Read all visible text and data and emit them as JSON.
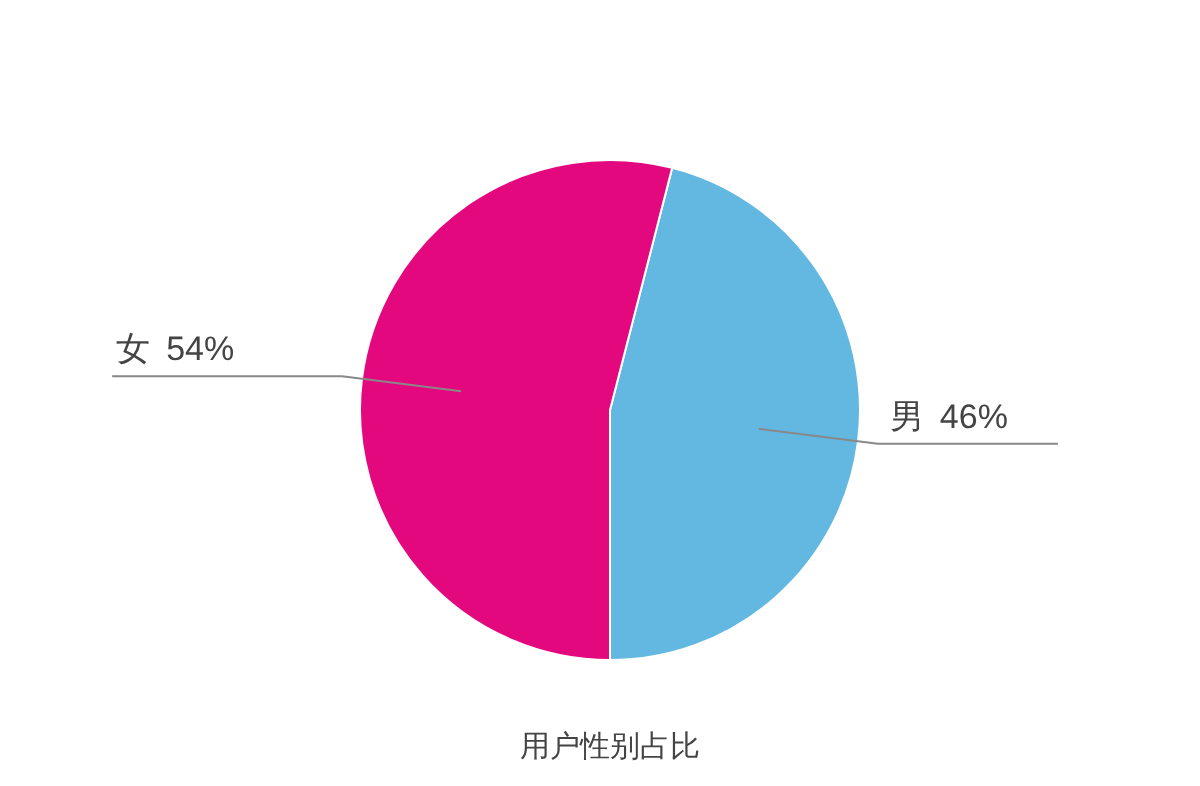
{
  "chart_data": {
    "type": "pie",
    "title": "用户性别占比",
    "categories": [
      "男",
      "女"
    ],
    "values": [
      46,
      54
    ],
    "value_labels": [
      "46%",
      "54%"
    ],
    "colors": [
      "#63b8e2",
      "#e4087e"
    ]
  }
}
